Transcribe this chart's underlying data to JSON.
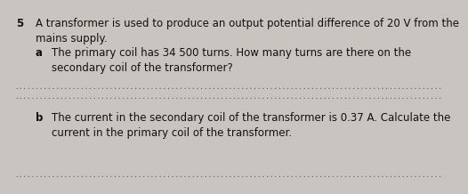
{
  "bg_color": "#c8c5c0",
  "text_color": "#111111",
  "question_number": "5",
  "question_text": "A transformer is used to produce an output potential difference of 20 V from the\nmains supply.",
  "part_a_label": "a",
  "part_a_text": "The primary coil has 34 500 turns. How many turns are there on the\nsecondary coil of the transformer?",
  "part_b_label": "b",
  "part_b_text": "The current in the secondary coil of the transformer is 0.37 A. Calculate the\ncurrent in the primary coil of the transformer.",
  "dot_color": "#555555",
  "font_size_main": 8.5,
  "num_dots": 160
}
